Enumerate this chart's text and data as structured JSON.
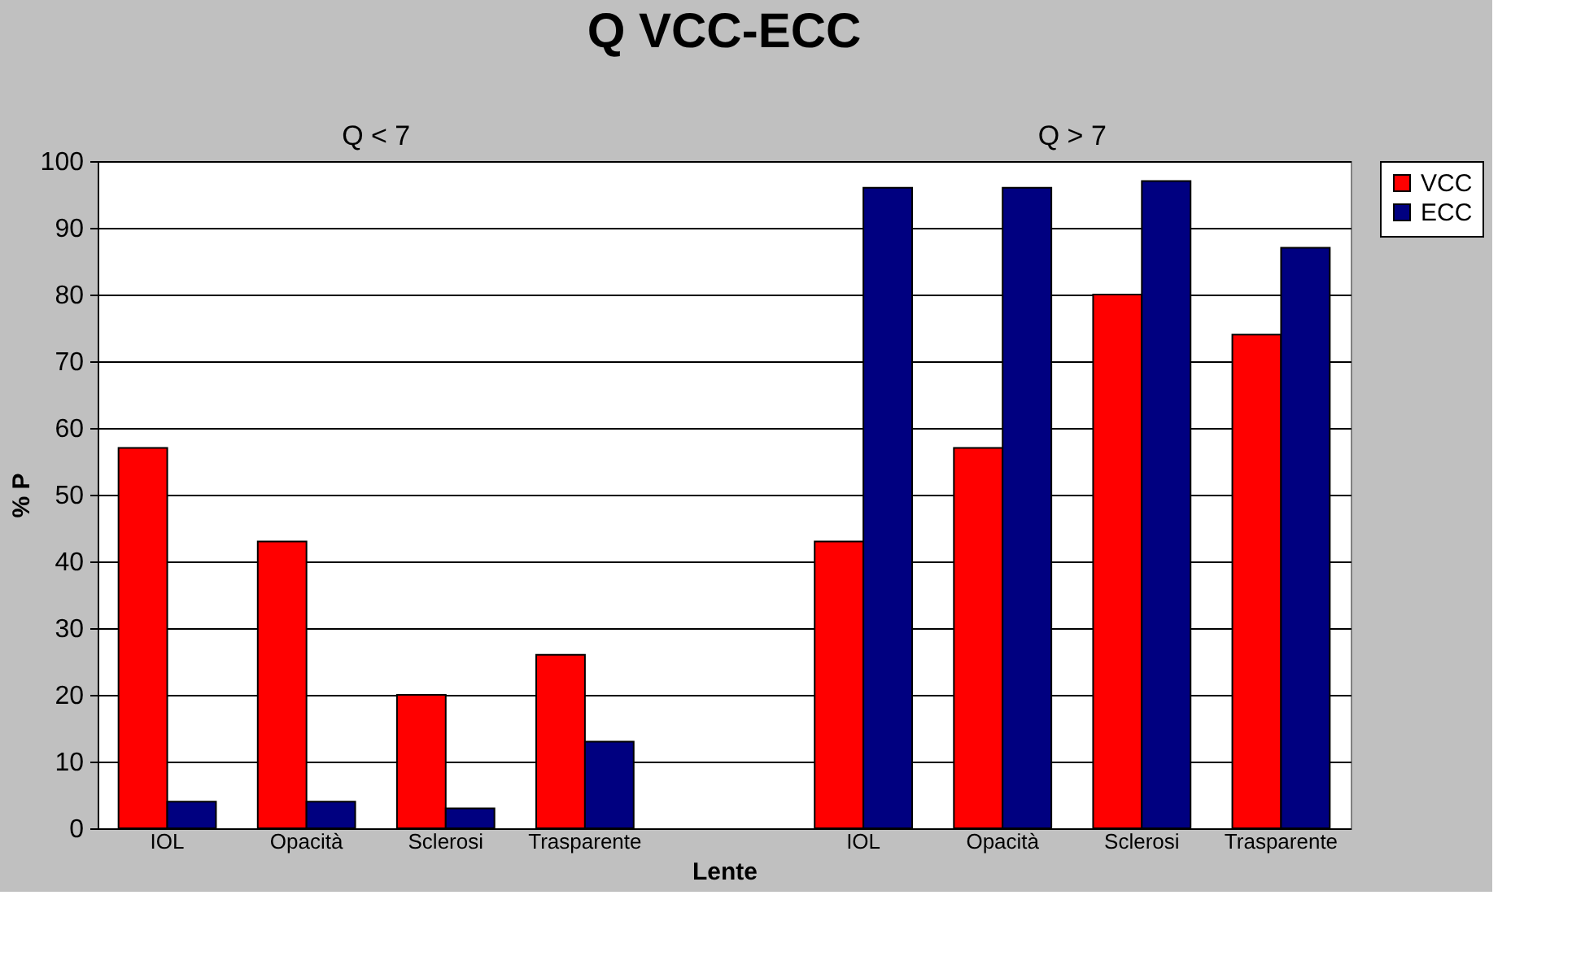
{
  "chart_data": {
    "type": "bar",
    "title": "Q VCC-ECC",
    "xlabel": "Lente",
    "ylabel": "% P",
    "categories": [
      "IOL",
      "Opacità",
      "Sclerosi",
      "Trasparente",
      null,
      "IOL",
      "Opacità",
      "Sclerosi",
      "Trasparente"
    ],
    "series": [
      {
        "name": "VCC",
        "color": "#ff0000",
        "values": [
          57,
          43,
          20,
          26,
          null,
          43,
          57,
          80,
          74
        ]
      },
      {
        "name": "ECC",
        "color": "#000080",
        "values": [
          4,
          4,
          3,
          13,
          null,
          96,
          96,
          97,
          87
        ]
      }
    ],
    "annotations": [
      "Q < 7",
      "Q > 7"
    ],
    "ylim": [
      0,
      100
    ],
    "yticks": [
      0,
      10,
      20,
      30,
      40,
      50,
      60,
      70,
      80,
      90,
      100
    ],
    "grid": "y",
    "legend": "right"
  }
}
